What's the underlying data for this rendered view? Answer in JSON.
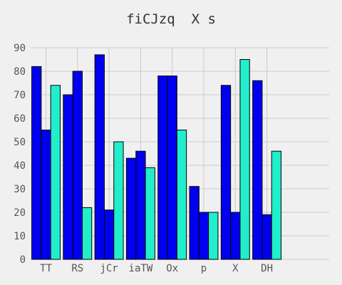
{
  "chart_data": {
    "type": "bar",
    "title": "fiCJzq  X s",
    "xlabel": "",
    "ylabel": "",
    "categories": [
      "TT",
      "RS",
      "jCr",
      "iaTW",
      "Ox",
      "p",
      "X",
      "DH"
    ],
    "series": [
      {
        "values": [
          82,
          70,
          87,
          43,
          78,
          31,
          74,
          76
        ],
        "color": "#0000ee"
      },
      {
        "values": [
          55,
          80,
          21,
          46,
          78,
          20,
          20,
          19
        ],
        "color": "#0000ee"
      },
      {
        "values": [
          74,
          22,
          50,
          39,
          55,
          20,
          85,
          46
        ],
        "color": "#22eecc"
      }
    ],
    "ylim": [
      0,
      90
    ],
    "yticks": [
      0,
      10,
      20,
      30,
      40,
      50,
      60,
      70,
      80,
      90
    ],
    "grid": true,
    "legend": "none"
  },
  "colors": {
    "background": "#f0f0f0",
    "grid": "#cbcbcb",
    "bar_edge": "#000000",
    "text": "#555555"
  }
}
